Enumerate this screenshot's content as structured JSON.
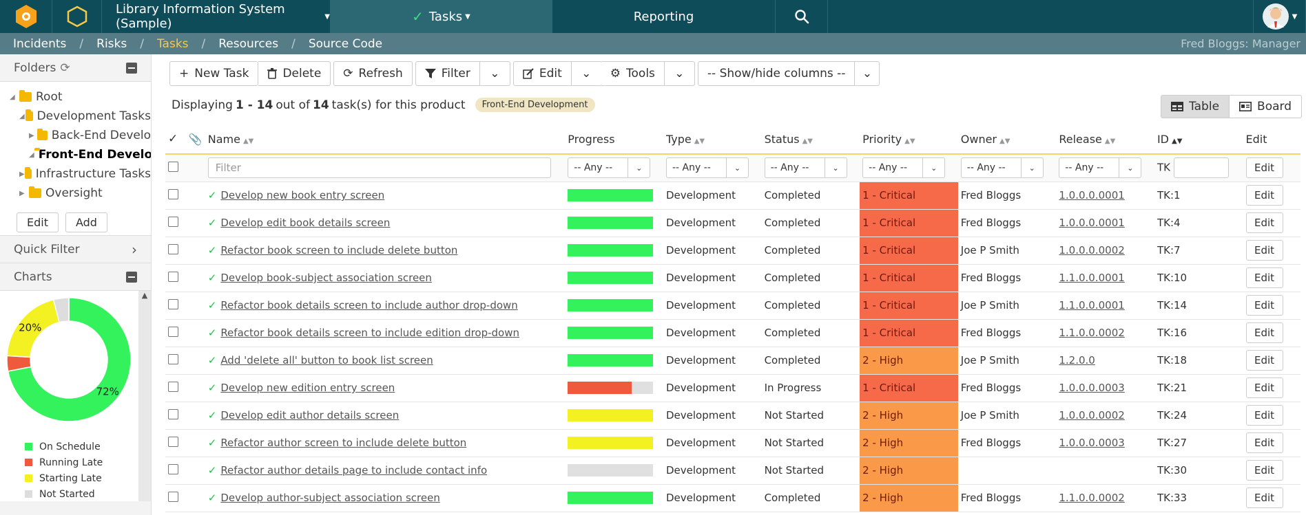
{
  "nav": {
    "project": "Library Information System (Sample)",
    "tasks": "Tasks",
    "reporting": "Reporting"
  },
  "subnav": {
    "items": [
      "Incidents",
      "Risks",
      "Tasks",
      "Resources",
      "Source Code"
    ],
    "user": "Fred Bloggs: Manager"
  },
  "sidebar": {
    "folders_title": "Folders",
    "tree": [
      "Root",
      "Development Tasks",
      "Back-End Develo",
      "Front-End Develo",
      "Infrastructure Tasks",
      "Oversight"
    ],
    "edit_label": "Edit",
    "add_label": "Add",
    "quick_filter": "Quick Filter",
    "charts_title": "Charts",
    "chart_data": {
      "type": "pie",
      "categories": [
        "On Schedule",
        "Running Late",
        "Starting Late",
        "Not Started"
      ],
      "values": [
        72,
        4,
        20,
        4
      ],
      "labels_shown": [
        "72%",
        "",
        "20%",
        ""
      ],
      "colors": [
        "#33f25c",
        "#f05a3c",
        "#f4f122",
        "#dddddd"
      ]
    }
  },
  "toolbar": {
    "new_task": "New Task",
    "delete": "Delete",
    "refresh": "Refresh",
    "filter": "Filter",
    "edit": "Edit",
    "tools": "Tools",
    "show_hide": "-- Show/hide columns --"
  },
  "summary": {
    "prefix": "Displaying",
    "range": "1 - 14",
    "middle": "out of",
    "total": "14",
    "suffix": "task(s) for this product",
    "badge": "Front-End Development"
  },
  "view": {
    "table": "Table",
    "board": "Board"
  },
  "columns": {
    "name": "Name",
    "progress": "Progress",
    "type": "Type",
    "status": "Status",
    "priority": "Priority",
    "owner": "Owner",
    "release": "Release",
    "id": "ID",
    "edit": "Edit"
  },
  "filters": {
    "name_placeholder": "Filter",
    "any": "-- Any --",
    "tk_prefix": "TK",
    "edit": "Edit"
  },
  "rows": [
    {
      "name": "Develop new book entry screen",
      "progress": 100,
      "progress_color": "#33f25c",
      "type": "Development",
      "status": "Completed",
      "priority": "1 - Critical",
      "priority_color": "#f66a4a",
      "owner": "Fred Bloggs",
      "release": "1.0.0.0.0001",
      "id": "TK:1",
      "edit": "Edit"
    },
    {
      "name": "Develop edit book details screen",
      "progress": 100,
      "progress_color": "#33f25c",
      "type": "Development",
      "status": "Completed",
      "priority": "1 - Critical",
      "priority_color": "#f66a4a",
      "owner": "Fred Bloggs",
      "release": "1.0.0.0.0001",
      "id": "TK:4",
      "edit": "Edit"
    },
    {
      "name": "Refactor book screen to include delete button",
      "progress": 100,
      "progress_color": "#33f25c",
      "type": "Development",
      "status": "Completed",
      "priority": "1 - Critical",
      "priority_color": "#f66a4a",
      "owner": "Joe P Smith",
      "release": "1.0.0.0.0002",
      "id": "TK:7",
      "edit": "Edit"
    },
    {
      "name": "Develop book-subject association screen",
      "progress": 100,
      "progress_color": "#33f25c",
      "type": "Development",
      "status": "Completed",
      "priority": "1 - Critical",
      "priority_color": "#f66a4a",
      "owner": "Fred Bloggs",
      "release": "1.1.0.0.0001",
      "id": "TK:10",
      "edit": "Edit"
    },
    {
      "name": "Refactor book details screen to include author drop-down",
      "progress": 100,
      "progress_color": "#33f25c",
      "type": "Development",
      "status": "Completed",
      "priority": "1 - Critical",
      "priority_color": "#f66a4a",
      "owner": "Joe P Smith",
      "release": "1.1.0.0.0001",
      "id": "TK:14",
      "edit": "Edit"
    },
    {
      "name": "Refactor book details screen to include edition drop-down",
      "progress": 100,
      "progress_color": "#33f25c",
      "type": "Development",
      "status": "Completed",
      "priority": "1 - Critical",
      "priority_color": "#f66a4a",
      "owner": "Fred Bloggs",
      "release": "1.1.0.0.0002",
      "id": "TK:16",
      "edit": "Edit"
    },
    {
      "name": "Add 'delete all' button to book list screen",
      "progress": 100,
      "progress_color": "#33f25c",
      "type": "Development",
      "status": "Completed",
      "priority": "2 - High",
      "priority_color": "#fa9a48",
      "owner": "Joe P Smith",
      "release": "1.2.0.0",
      "id": "TK:18",
      "edit": "Edit"
    },
    {
      "name": "Develop new edition entry screen",
      "progress": 75,
      "progress_color": "#f05a3c",
      "type": "Development",
      "status": "In Progress",
      "priority": "1 - Critical",
      "priority_color": "#f66a4a",
      "owner": "Fred Bloggs",
      "release": "1.0.0.0.0003",
      "id": "TK:21",
      "edit": "Edit"
    },
    {
      "name": "Develop edit author details screen",
      "progress": 100,
      "progress_color": "#f4f122",
      "type": "Development",
      "status": "Not Started",
      "priority": "2 - High",
      "priority_color": "#fa9a48",
      "owner": "Joe P Smith",
      "release": "1.0.0.0.0002",
      "id": "TK:24",
      "edit": "Edit"
    },
    {
      "name": "Refactor author screen to include delete button",
      "progress": 100,
      "progress_color": "#f4f122",
      "type": "Development",
      "status": "Not Started",
      "priority": "2 - High",
      "priority_color": "#fa9a48",
      "owner": "Fred Bloggs",
      "release": "1.0.0.0.0003",
      "id": "TK:27",
      "edit": "Edit"
    },
    {
      "name": "Refactor author details page to include contact info",
      "progress": 0,
      "progress_color": "#dddddd",
      "type": "Development",
      "status": "Not Started",
      "priority": "2 - High",
      "priority_color": "#fa9a48",
      "owner": "",
      "release": "",
      "id": "TK:30",
      "edit": "Edit"
    },
    {
      "name": "Develop author-subject association screen",
      "progress": 100,
      "progress_color": "#33f25c",
      "type": "Development",
      "status": "Completed",
      "priority": "2 - High",
      "priority_color": "#fa9a48",
      "owner": "Fred Bloggs",
      "release": "1.1.0.0.0002",
      "id": "TK:33",
      "edit": "Edit"
    }
  ]
}
